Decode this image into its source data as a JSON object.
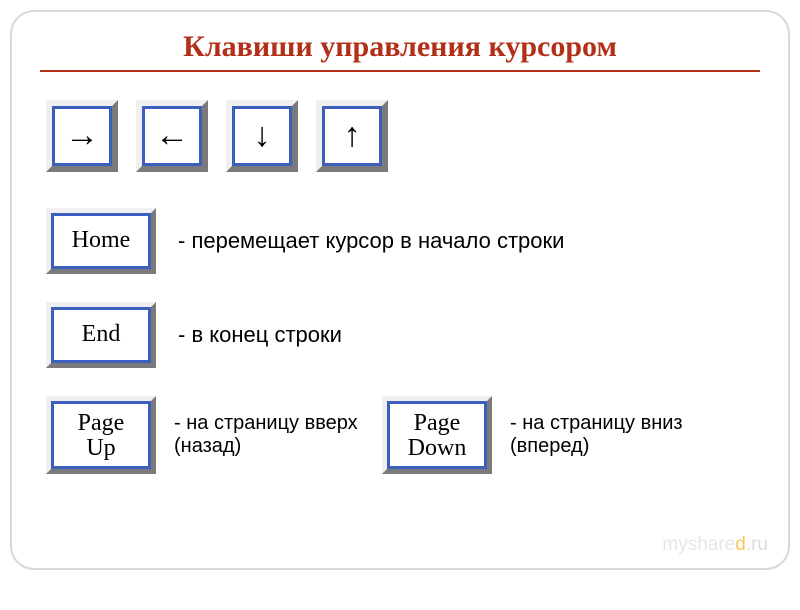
{
  "title": {
    "text": "Клавиши управления курсором",
    "color": "#b23018"
  },
  "rule_color": "#b23018",
  "key_style": {
    "outer_light": "#f0f0f0",
    "outer_dark": "#7a7a7a",
    "inner_border_color": "#3a5fbf",
    "face_color": "#ffffff",
    "text_color": "#000000"
  },
  "arrows": [
    {
      "glyph": "→",
      "name": "arrow-right-key"
    },
    {
      "glyph": "←",
      "name": "arrow-left-key"
    },
    {
      "glyph": "↓",
      "name": "arrow-down-key"
    },
    {
      "glyph": "↑",
      "name": "arrow-up-key"
    }
  ],
  "rows": {
    "home": {
      "label": "Home",
      "desc": "- перемещает курсор в начало строки"
    },
    "end": {
      "label": "End",
      "desc": "- в конец строки"
    },
    "pgup": {
      "label_line1": "Page",
      "label_line2": "Up",
      "desc": "- на страницу вверх (назад)"
    },
    "pgdn": {
      "label_line1": "Page",
      "label_line2": "Down",
      "desc": "- на страницу вниз (вперед)"
    }
  },
  "watermark": {
    "prefix": "myshare",
    "highlight": "d",
    "suffix": ".ru"
  }
}
